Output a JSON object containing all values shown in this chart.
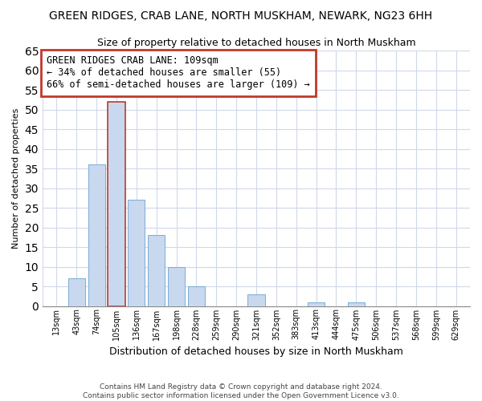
{
  "title": "GREEN RIDGES, CRAB LANE, NORTH MUSKHAM, NEWARK, NG23 6HH",
  "subtitle": "Size of property relative to detached houses in North Muskham",
  "xlabel": "Distribution of detached houses by size in North Muskham",
  "ylabel": "Number of detached properties",
  "bin_labels": [
    "13sqm",
    "43sqm",
    "74sqm",
    "105sqm",
    "136sqm",
    "167sqm",
    "198sqm",
    "228sqm",
    "259sqm",
    "290sqm",
    "321sqm",
    "352sqm",
    "383sqm",
    "413sqm",
    "444sqm",
    "475sqm",
    "506sqm",
    "537sqm",
    "568sqm",
    "599sqm",
    "629sqm"
  ],
  "bar_values": [
    0,
    7,
    36,
    52,
    27,
    18,
    10,
    5,
    0,
    0,
    3,
    0,
    0,
    1,
    0,
    1,
    0,
    0,
    0,
    0,
    0
  ],
  "bar_color": "#c8d8ee",
  "bar_edge_color": "#7aadd4",
  "highlight_bar_index": 3,
  "highlight_bar_edge_color": "#c0392b",
  "annotation_line1": "GREEN RIDGES CRAB LANE: 109sqm",
  "annotation_line2": "← 34% of detached houses are smaller (55)",
  "annotation_line3": "66% of semi-detached houses are larger (109) →",
  "annotation_box_edge": "#c0392b",
  "ylim": [
    0,
    65
  ],
  "yticks": [
    0,
    5,
    10,
    15,
    20,
    25,
    30,
    35,
    40,
    45,
    50,
    55,
    60,
    65
  ],
  "footer_line1": "Contains HM Land Registry data © Crown copyright and database right 2024.",
  "footer_line2": "Contains public sector information licensed under the Open Government Licence v3.0.",
  "bg_color": "#ffffff",
  "plot_bg_color": "#ffffff",
  "grid_color": "#d0d8e8"
}
